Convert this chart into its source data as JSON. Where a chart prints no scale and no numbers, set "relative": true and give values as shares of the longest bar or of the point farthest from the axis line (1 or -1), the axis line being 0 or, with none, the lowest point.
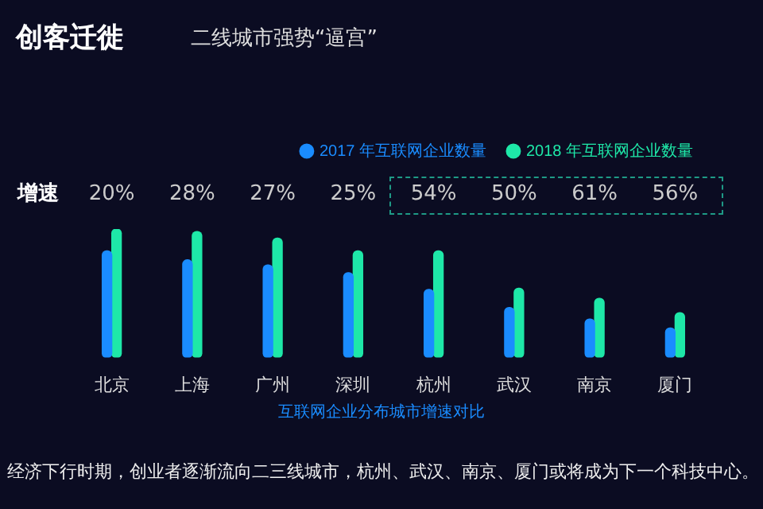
{
  "chart_data": {
    "type": "bar",
    "title": "创客迁徙",
    "subtitle": "二线城市强势“逼宫”",
    "relative": true,
    "legend": "top right",
    "categories": [
      "北京",
      "上海",
      "广州",
      "深圳",
      "杭州",
      "武汉",
      "南京",
      "厦门"
    ],
    "series": [
      {
        "name": "2017 年互联网企业数量",
        "color": "#1a8cff",
        "values": [
          0.83,
          0.76,
          0.72,
          0.66,
          0.53,
          0.39,
          0.3,
          0.23
        ]
      },
      {
        "name": "2018 年互联网企业数量",
        "color": "#1ee8a8",
        "values": [
          1,
          0.98,
          0.93,
          0.83,
          0.83,
          0.54,
          0.46,
          0.35
        ]
      }
    ],
    "annotations": [
      "增速",
      "20%",
      "28%",
      "27%",
      "25%",
      "54%",
      "50%",
      "61%",
      "56%",
      "互联网企业分布城市增速对比",
      "经济下行时期，创业者逐渐流向二三线城市，杭州、武汉、南京、厦门或将成为下一个科技中心。"
    ]
  }
}
